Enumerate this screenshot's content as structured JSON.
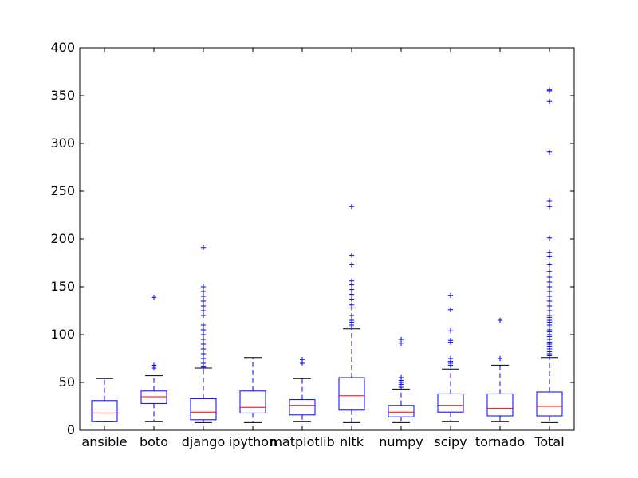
{
  "chart_data": {
    "type": "box",
    "title": "",
    "xlabel": "",
    "ylabel": "",
    "ylim": [
      0,
      400
    ],
    "yticks": [
      0,
      50,
      100,
      150,
      200,
      250,
      300,
      350,
      400
    ],
    "grid": false,
    "colors": {
      "box": "#0000ff",
      "median": "#ff0000",
      "cap": "#000000",
      "flier": "#0000ff"
    },
    "categories": [
      "ansible",
      "boto",
      "django",
      "ipython",
      "matplotlib",
      "nltk",
      "numpy",
      "scipy",
      "tornado",
      "Total"
    ],
    "boxes": [
      {
        "label": "ansible",
        "q1": 9,
        "median": 18,
        "q3": 31,
        "whislo": 9,
        "whishi": 54,
        "fliers": []
      },
      {
        "label": "boto",
        "q1": 28,
        "median": 35,
        "q3": 41,
        "whislo": 9,
        "whishi": 57,
        "fliers": [
          65,
          67,
          68,
          139
        ]
      },
      {
        "label": "django",
        "q1": 11,
        "median": 19,
        "q3": 33,
        "whislo": 8,
        "whishi": 65,
        "fliers": [
          66,
          67,
          70,
          75,
          80,
          85,
          90,
          95,
          100,
          105,
          110,
          120,
          125,
          130,
          135,
          140,
          145,
          150,
          191
        ]
      },
      {
        "label": "ipython",
        "q1": 18,
        "median": 24,
        "q3": 41,
        "whislo": 8,
        "whishi": 76,
        "fliers": []
      },
      {
        "label": "matplotlib",
        "q1": 16,
        "median": 26,
        "q3": 32,
        "whislo": 9,
        "whishi": 54,
        "fliers": [
          70,
          74
        ]
      },
      {
        "label": "nltk",
        "q1": 21,
        "median": 36,
        "q3": 55,
        "whislo": 8,
        "whishi": 106,
        "fliers": [
          108,
          110,
          113,
          115,
          120,
          128,
          131,
          137,
          142,
          147,
          152,
          156,
          173,
          183,
          234
        ]
      },
      {
        "label": "numpy",
        "q1": 14,
        "median": 19,
        "q3": 26,
        "whislo": 8,
        "whishi": 43,
        "fliers": [
          45,
          48,
          50,
          52,
          55,
          91,
          95
        ]
      },
      {
        "label": "scipy",
        "q1": 19,
        "median": 26,
        "q3": 38,
        "whislo": 9,
        "whishi": 64,
        "fliers": [
          68,
          70,
          72,
          75,
          92,
          94,
          104,
          126,
          141
        ]
      },
      {
        "label": "tornado",
        "q1": 15,
        "median": 23,
        "q3": 38,
        "whislo": 9,
        "whishi": 68,
        "fliers": [
          75,
          115
        ]
      },
      {
        "label": "Total",
        "q1": 15,
        "median": 25,
        "q3": 40,
        "whislo": 8,
        "whishi": 76,
        "fliers": [
          78,
          80,
          82,
          85,
          88,
          90,
          92,
          95,
          98,
          100,
          103,
          105,
          108,
          110,
          113,
          115,
          118,
          120,
          125,
          130,
          135,
          140,
          145,
          150,
          155,
          160,
          166,
          173,
          182,
          186,
          201,
          234,
          240,
          291,
          344,
          355,
          356
        ]
      }
    ]
  }
}
